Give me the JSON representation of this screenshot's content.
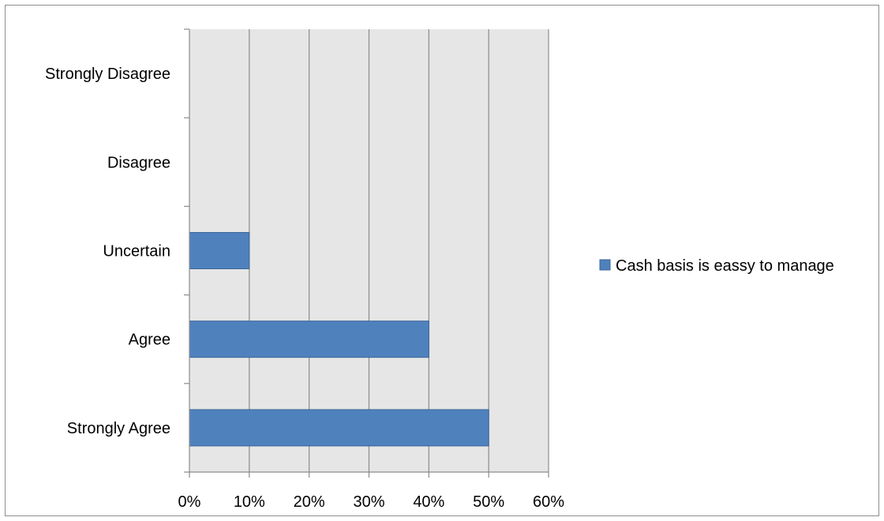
{
  "chart_data": {
    "type": "bar",
    "orientation": "horizontal",
    "categories": [
      "Strongly Agree",
      "Agree",
      "Uncertain",
      "Disagree",
      "Strongly Disagree"
    ],
    "series": [
      {
        "name": "Cash basis is eassy to manage",
        "values": [
          50,
          40,
          10,
          0,
          0
        ],
        "color": "#4f81bd"
      }
    ],
    "xlim": [
      0,
      60
    ],
    "x_ticks": [
      "0%",
      "10%",
      "20%",
      "30%",
      "40%",
      "50%",
      "60%"
    ],
    "grid": "vertical",
    "plot_background": "#e6e6e6",
    "legend_position": "right"
  }
}
